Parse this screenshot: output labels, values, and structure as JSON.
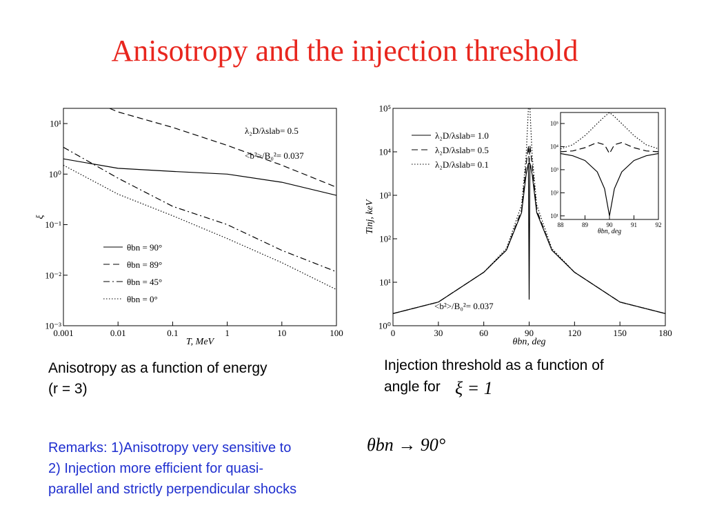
{
  "title": "Anisotropy and the injection threshold",
  "caption_left": [
    "Anisotropy as a function of energy",
    "(r = 3)"
  ],
  "caption_right": [
    "Injection threshold as a function of",
    "angle for"
  ],
  "caption_right_math": "ξ = 1",
  "remarks": [
    "Remarks: 1)Anisotropy very sensitive to",
    "2) Injection more efficient for quasi-",
    "parallel and strictly perpendicular shocks"
  ],
  "remarks_math": "θbn → 90°",
  "chart_data": [
    {
      "type": "line",
      "xlog": true,
      "ylog": true,
      "xlabel": "T, MeV",
      "ylabel": "ξ",
      "xlim": [
        0.001,
        100
      ],
      "ylim": [
        0.001,
        20
      ],
      "xticks": [
        0.001,
        0.01,
        0.1,
        1,
        10,
        100
      ],
      "yticks": [
        {
          "value": 0.001,
          "label": "10⁻³"
        },
        {
          "value": 0.01,
          "label": "10⁻²"
        },
        {
          "value": 0.1,
          "label": "10⁻¹"
        },
        {
          "value": 1,
          "label": "10⁰"
        },
        {
          "value": 10,
          "label": "10¹"
        }
      ],
      "legend": "lower center",
      "annotations": [
        "λ₂D/λslab= 0.5",
        "<b²>/B₀²= 0.037"
      ],
      "series": [
        {
          "name": "θbn = 90°",
          "color": "#000000",
          "style": "solid",
          "x": [
            0.001,
            0.01,
            0.1,
            1,
            10,
            100
          ],
          "values": [
            2.0,
            1.3,
            1.13,
            1.0,
            0.69,
            0.38
          ]
        },
        {
          "name": "θbn = 89°",
          "color": "#000000",
          "style": "dashed",
          "x": [
            0.007,
            0.01,
            0.1,
            1,
            10,
            100
          ],
          "values": [
            20,
            17,
            8.4,
            3.7,
            1.5,
            0.55
          ]
        },
        {
          "name": "θbn = 45°",
          "color": "#000000",
          "style": "dashdot",
          "x": [
            0.001,
            0.01,
            0.1,
            1,
            10,
            100
          ],
          "values": [
            3.4,
            0.83,
            0.23,
            0.1,
            0.031,
            0.0117
          ]
        },
        {
          "name": "θbn = 0°",
          "color": "#000000",
          "style": "dotted",
          "x": [
            0.001,
            0.01,
            0.1,
            1,
            10,
            100
          ],
          "values": [
            1.5,
            0.4,
            0.15,
            0.053,
            0.0177,
            0.0052
          ]
        }
      ]
    },
    {
      "type": "line",
      "xlog": false,
      "ylog": true,
      "xlabel": "θbn, deg",
      "ylabel": "Tinj, keV",
      "xlim": [
        0,
        180
      ],
      "ylim": [
        1,
        100000
      ],
      "xticks": [
        0,
        30,
        60,
        90,
        120,
        150,
        180
      ],
      "yticks": [
        {
          "value": 1,
          "label": "10⁰"
        },
        {
          "value": 10,
          "label": "10¹"
        },
        {
          "value": 100,
          "label": "10²"
        },
        {
          "value": 1000,
          "label": "10³"
        },
        {
          "value": 10000,
          "label": "10⁴"
        },
        {
          "value": 100000,
          "label": "10⁵"
        }
      ],
      "legend": "upper left",
      "annotations": [
        "<b²>/B₀²= 0.037"
      ],
      "series": [
        {
          "name": "λ₂D/λslab= 1.0",
          "color": "#000000",
          "style": "solid",
          "x": [
            0,
            30,
            60,
            75,
            85,
            88,
            89.5,
            90,
            90.5,
            92,
            95,
            105,
            120,
            150,
            180
          ],
          "values": [
            1.9,
            3.5,
            17,
            55,
            400,
            3000,
            5500,
            4,
            5500,
            3000,
            400,
            55,
            17,
            3.5,
            1.9
          ]
        },
        {
          "name": "λ₂D/λslab= 0.5",
          "color": "#000000",
          "style": "dashed",
          "x": [
            0,
            30,
            60,
            75,
            85,
            88,
            89.5,
            90,
            90.5,
            92,
            95,
            105,
            120,
            150,
            180
          ],
          "values": [
            1.9,
            3.5,
            17,
            55,
            450,
            5000,
            14000,
            5000,
            14000,
            5000,
            450,
            55,
            17,
            3.5,
            1.9
          ]
        },
        {
          "name": "λ₂D/λslab= 0.1",
          "color": "#000000",
          "style": "dotted",
          "x": [
            0,
            30,
            60,
            75,
            85,
            88,
            89.5,
            90,
            90.5,
            92,
            95,
            105,
            120,
            150,
            180
          ],
          "values": [
            1.9,
            3.5,
            17,
            60,
            600,
            8000,
            100000,
            100000,
            100000,
            8000,
            600,
            60,
            17,
            3.5,
            1.9
          ]
        }
      ]
    },
    {
      "type": "line",
      "xlog": false,
      "ylog": true,
      "xlabel": "θbn, deg",
      "xlim": [
        88,
        92
      ],
      "ylim": [
        7,
        300000
      ],
      "xticks": [
        88,
        89,
        90,
        91,
        92
      ],
      "yticks": [
        {
          "value": 10,
          "label": "10¹"
        },
        {
          "value": 100,
          "label": "10²"
        },
        {
          "value": 1000,
          "label": "10³"
        },
        {
          "value": 10000,
          "label": "10⁴"
        },
        {
          "value": 100000,
          "label": "10⁵"
        }
      ],
      "series": [
        {
          "color": "#000000",
          "style": "solid",
          "x": [
            88,
            88.5,
            89,
            89.5,
            89.8,
            90,
            90.2,
            90.5,
            91,
            91.5,
            92
          ],
          "values": [
            5000,
            4000,
            2500,
            800,
            150,
            10,
            150,
            800,
            2500,
            4000,
            5000
          ]
        },
        {
          "color": "#000000",
          "style": "dashed",
          "x": [
            88,
            88.5,
            89,
            89.5,
            89.8,
            90,
            90.2,
            90.5,
            91,
            91.5,
            92
          ],
          "values": [
            6000,
            6500,
            9000,
            15000,
            12000,
            5000,
            12000,
            15000,
            9000,
            6500,
            6000
          ]
        },
        {
          "color": "#000000",
          "style": "dotted",
          "x": [
            88,
            88.5,
            89,
            89.5,
            89.8,
            90,
            90.2,
            90.5,
            91,
            91.5,
            92
          ],
          "values": [
            8000,
            12000,
            30000,
            100000,
            200000,
            300000,
            200000,
            100000,
            30000,
            12000,
            8000
          ]
        }
      ]
    }
  ]
}
